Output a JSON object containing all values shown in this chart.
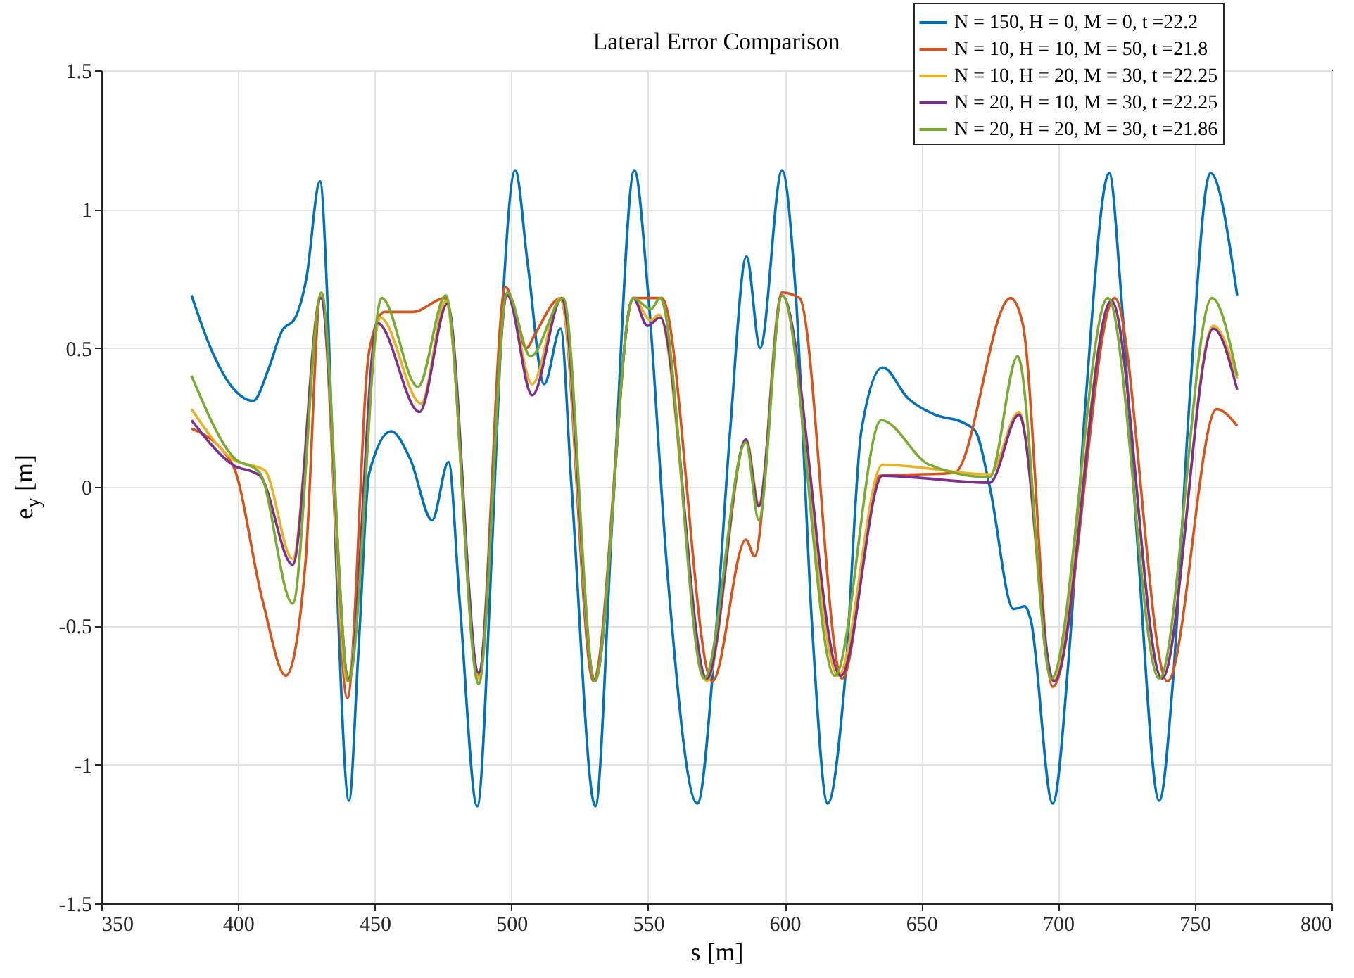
{
  "chart_data": {
    "type": "line",
    "title": "Lateral Error Comparison",
    "xlabel": "s [m]",
    "ylabel": "e$_{y}$ [m]",
    "xlim": [
      350,
      800
    ],
    "xticks": [
      350,
      400,
      450,
      500,
      550,
      600,
      650,
      700,
      750,
      800
    ],
    "ylim": [
      -1.5,
      1.5
    ],
    "yticks": [
      -1.5,
      -1,
      -0.5,
      0,
      0.5,
      1,
      1.5
    ],
    "grid": true,
    "legend": "top right",
    "series": [
      {
        "name": "N = 150, H = 0, M = 0, t =22.2",
        "color": "#0072bd",
        "x": [
          383,
          390,
          397,
          405.6,
          411,
          416,
          421,
          425,
          430,
          433,
          436,
          440.6,
          444,
          448,
          456,
          463,
          471,
          477,
          481,
          487.5,
          493,
          496.5,
          501.4,
          506,
          512,
          518,
          522,
          530.7,
          537,
          545,
          550,
          557,
          568,
          575,
          580,
          586,
          591,
          599,
          604,
          610,
          615.7,
          622,
          628,
          635.8,
          645,
          655,
          665.6,
          669.8,
          675,
          683.7,
          687.8,
          690,
          698,
          704,
          710,
          718.7,
          723,
          729,
          737,
          742,
          748,
          755.7,
          765.5
        ],
        "values": [
          0.69,
          0.5,
          0.37,
          0.31,
          0.42,
          0.56,
          0.61,
          0.75,
          1.1,
          0.6,
          -0.3,
          -1.13,
          -0.6,
          0.05,
          0.2,
          0.1,
          -0.12,
          0.09,
          -0.4,
          -1.15,
          -0.2,
          0.6,
          1.14,
          0.8,
          0.37,
          0.57,
          0.0,
          -1.15,
          -0.1,
          1.14,
          0.7,
          -0.3,
          -1.14,
          -0.5,
          0.2,
          0.83,
          0.5,
          1.14,
          0.7,
          -0.5,
          -1.14,
          -0.7,
          0.2,
          0.43,
          0.32,
          0.26,
          0.23,
          0.2,
          0.0,
          -0.44,
          -0.43,
          -0.48,
          -1.14,
          -0.6,
          0.3,
          1.13,
          0.7,
          -0.2,
          -1.13,
          -0.7,
          0.3,
          1.13,
          0.69
        ]
      },
      {
        "name": "N = 10, H = 10, M = 50, t =21.8",
        "color": "#d95319",
        "x": [
          383,
          398,
          409,
          417.5,
          424.7,
          430.3,
          440,
          448,
          453.5,
          463.8,
          476,
          488,
          497.8,
          505.5,
          508.6,
          518,
          530,
          544.6,
          555,
          573.5,
          585.8,
          589,
          599,
          605.4,
          621,
          634.7,
          662,
          682.6,
          687,
          698,
          720.7,
          740,
          758,
          765.5
        ],
        "values": [
          0.21,
          0.08,
          -0.41,
          -0.68,
          -0.27,
          0.69,
          -0.76,
          0.49,
          0.63,
          0.63,
          0.68,
          -0.68,
          0.72,
          0.5,
          0.55,
          0.68,
          -0.7,
          0.68,
          0.68,
          -0.7,
          -0.19,
          -0.25,
          0.7,
          0.68,
          -0.69,
          0.04,
          0.05,
          0.68,
          0.59,
          -0.72,
          0.68,
          -0.7,
          0.28,
          0.22
        ]
      },
      {
        "name": "N = 10, H = 20, M = 30, t =22.25",
        "color": "#edb120",
        "x": [
          383,
          398,
          409.7,
          420,
          430.3,
          440,
          452,
          467,
          476,
          488,
          498.5,
          507.6,
          518,
          530.5,
          544.5,
          551,
          554,
          571.5,
          586,
          590.5,
          599,
          619.5,
          635.8,
          675,
          685.7,
          698,
          719.5,
          738,
          756.8,
          765.5
        ],
        "values": [
          0.28,
          0.1,
          0.06,
          -0.26,
          0.69,
          -0.7,
          0.61,
          0.3,
          0.67,
          -0.69,
          0.69,
          0.37,
          0.68,
          -0.7,
          0.68,
          0.6,
          0.62,
          -0.7,
          0.17,
          -0.06,
          0.69,
          -0.68,
          0.08,
          0.045,
          0.27,
          -0.7,
          0.67,
          -0.69,
          0.58,
          0.39
        ]
      },
      {
        "name": "N = 20, H = 10, M = 30, t =22.25",
        "color": "#7e2f8e",
        "x": [
          383,
          398,
          408,
          420,
          430.3,
          440.5,
          451,
          466.4,
          476.6,
          488,
          498.5,
          507.6,
          518.5,
          530.5,
          544.5,
          549.8,
          554.4,
          571.5,
          585.8,
          590.5,
          599,
          620.5,
          635.8,
          675,
          685.7,
          698.5,
          719.5,
          738,
          756.8,
          765.5
        ],
        "values": [
          0.24,
          0.08,
          0.04,
          -0.28,
          0.68,
          -0.69,
          0.59,
          0.27,
          0.66,
          -0.67,
          0.69,
          0.33,
          0.68,
          -0.7,
          0.68,
          0.58,
          0.61,
          -0.69,
          0.17,
          -0.07,
          0.69,
          -0.68,
          0.04,
          0.015,
          0.26,
          -0.7,
          0.67,
          -0.69,
          0.57,
          0.35
        ]
      },
      {
        "name": "N = 20, H = 20, M = 30, t =21.86",
        "color": "#77ac30",
        "x": [
          383,
          398,
          408,
          420,
          430.5,
          440.5,
          452.5,
          465.8,
          476,
          488,
          498.5,
          507,
          519,
          530.5,
          544.5,
          551,
          554.4,
          570.5,
          585.8,
          590.5,
          599,
          618.3,
          635.3,
          652.8,
          675,
          685.2,
          697.5,
          718.2,
          737,
          756.3,
          765.5
        ],
        "values": [
          0.4,
          0.11,
          0.05,
          -0.42,
          0.7,
          -0.7,
          0.68,
          0.36,
          0.69,
          -0.71,
          0.7,
          0.47,
          0.68,
          -0.7,
          0.68,
          0.64,
          0.68,
          -0.69,
          0.16,
          -0.12,
          0.69,
          -0.68,
          0.24,
          0.08,
          0.035,
          0.47,
          -0.69,
          0.68,
          -0.69,
          0.68,
          0.4
        ]
      }
    ]
  }
}
